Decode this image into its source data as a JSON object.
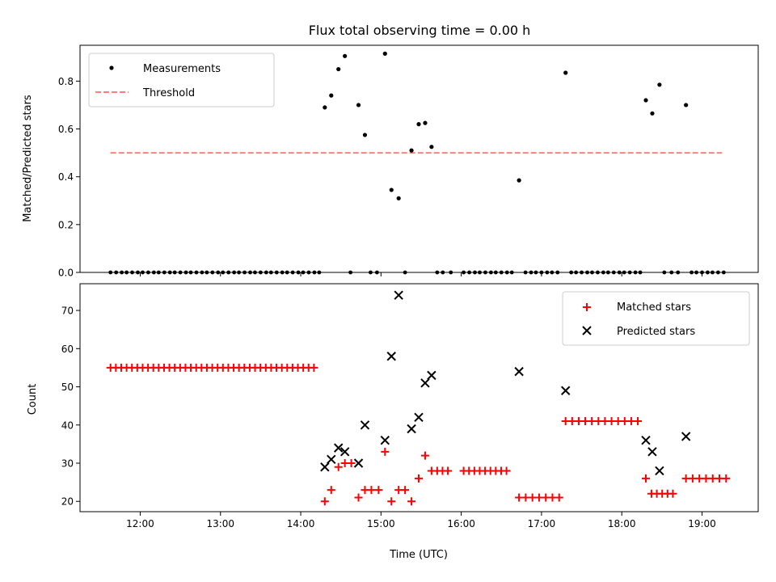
{
  "chart_data": [
    {
      "type": "scatter",
      "title": "Flux total observing time = 0.00 h",
      "xlabel": "",
      "ylabel": "Matched/Predicted stars",
      "xlim": [
        11.25,
        19.7
      ],
      "ylim": [
        0,
        0.95
      ],
      "xticks": [
        12,
        13,
        14,
        15,
        16,
        17,
        18,
        19
      ],
      "yticks": [
        {
          "v": 0,
          "label": "0.0"
        },
        {
          "v": 0.2,
          "label": "0.2"
        },
        {
          "v": 0.4,
          "label": "0.4"
        },
        {
          "v": 0.6,
          "label": "0.6"
        },
        {
          "v": 0.8,
          "label": "0.8"
        }
      ],
      "legend_position": "top-left",
      "series": [
        {
          "name": "Measurements",
          "kind": "dots",
          "color": "#000000",
          "zero_run_times": [
            11.63,
            11.7,
            11.77,
            11.83,
            11.9,
            11.97,
            12.03,
            12.1,
            12.17,
            12.23,
            12.3,
            12.37,
            12.43,
            12.5,
            12.57,
            12.63,
            12.7,
            12.77,
            12.83,
            12.9,
            12.97,
            13.03,
            13.1,
            13.17,
            13.23,
            13.3,
            13.37,
            13.43,
            13.5,
            13.57,
            13.63,
            13.7,
            13.77,
            13.83,
            13.9,
            13.97,
            14.03,
            14.1,
            14.17,
            14.23,
            14.62,
            14.87,
            14.95,
            15.3,
            15.7,
            15.77,
            15.87,
            16.03,
            16.1,
            16.17,
            16.23,
            16.3,
            16.37,
            16.43,
            16.5,
            16.57,
            16.63,
            16.8,
            16.87,
            16.93,
            17.0,
            17.07,
            17.13,
            17.2,
            17.37,
            17.43,
            17.5,
            17.57,
            17.63,
            17.7,
            17.77,
            17.83,
            17.9,
            17.97,
            18.03,
            18.1,
            18.17,
            18.23,
            18.53,
            18.62,
            18.7,
            18.87,
            18.93,
            19.0,
            19.07,
            19.13,
            19.2,
            19.27
          ],
          "points": [
            {
              "x": 14.3,
              "y": 0.69
            },
            {
              "x": 14.38,
              "y": 0.74
            },
            {
              "x": 14.47,
              "y": 0.85
            },
            {
              "x": 14.55,
              "y": 0.905
            },
            {
              "x": 14.72,
              "y": 0.7
            },
            {
              "x": 14.8,
              "y": 0.575
            },
            {
              "x": 15.05,
              "y": 0.915
            },
            {
              "x": 15.13,
              "y": 0.345
            },
            {
              "x": 15.22,
              "y": 0.31
            },
            {
              "x": 15.38,
              "y": 0.51
            },
            {
              "x": 15.47,
              "y": 0.62
            },
            {
              "x": 15.55,
              "y": 0.625
            },
            {
              "x": 15.63,
              "y": 0.525
            },
            {
              "x": 16.72,
              "y": 0.385
            },
            {
              "x": 17.3,
              "y": 0.835
            },
            {
              "x": 18.3,
              "y": 0.72
            },
            {
              "x": 18.38,
              "y": 0.665
            },
            {
              "x": 18.47,
              "y": 0.785
            },
            {
              "x": 18.8,
              "y": 0.7
            }
          ]
        },
        {
          "name": "Threshold",
          "kind": "dashed-line",
          "color": "#ff7f7f",
          "points": [
            {
              "x": 11.63,
              "y": 0.5
            },
            {
              "x": 19.25,
              "y": 0.5
            }
          ]
        }
      ]
    },
    {
      "type": "scatter",
      "title": "",
      "xlabel": "Time (UTC)",
      "ylabel": "Count",
      "xlim": [
        11.25,
        19.7
      ],
      "ylim": [
        17.3,
        77
      ],
      "xticks": [
        {
          "v": 12,
          "label": "12:00"
        },
        {
          "v": 13,
          "label": "13:00"
        },
        {
          "v": 14,
          "label": "14:00"
        },
        {
          "v": 15,
          "label": "15:00"
        },
        {
          "v": 16,
          "label": "16:00"
        },
        {
          "v": 17,
          "label": "17:00"
        },
        {
          "v": 18,
          "label": "18:00"
        },
        {
          "v": 19,
          "label": "19:00"
        }
      ],
      "yticks": [
        {
          "v": 20,
          "label": "20"
        },
        {
          "v": 30,
          "label": "30"
        },
        {
          "v": 40,
          "label": "40"
        },
        {
          "v": 50,
          "label": "50"
        },
        {
          "v": 60,
          "label": "60"
        },
        {
          "v": 70,
          "label": "70"
        }
      ],
      "legend_position": "top-right",
      "series": [
        {
          "name": "Matched stars",
          "kind": "plus",
          "color": "#ff0000",
          "runs": [
            {
              "x_start": 11.63,
              "x_end": 14.23,
              "step": 0.0667,
              "y": 55
            },
            {
              "x_start": 15.7,
              "x_end": 15.87,
              "step": 0.0667,
              "y": 28
            },
            {
              "x_start": 16.03,
              "x_end": 16.63,
              "step": 0.0667,
              "y": 28
            },
            {
              "x_start": 16.72,
              "x_end": 17.22,
              "step": 0.0833,
              "y": 21
            },
            {
              "x_start": 17.3,
              "x_end": 18.2,
              "step": 0.0818,
              "y": 41
            },
            {
              "x_start": 18.37,
              "x_end": 18.7,
              "step": 0.0667,
              "y": 22
            },
            {
              "x_start": 18.8,
              "x_end": 19.3,
              "step": 0.0833,
              "y": 26
            }
          ],
          "points": [
            {
              "x": 14.3,
              "y": 20
            },
            {
              "x": 14.38,
              "y": 23
            },
            {
              "x": 14.47,
              "y": 29
            },
            {
              "x": 14.55,
              "y": 30
            },
            {
              "x": 14.63,
              "y": 30
            },
            {
              "x": 14.72,
              "y": 21
            },
            {
              "x": 14.8,
              "y": 23
            },
            {
              "x": 14.88,
              "y": 23
            },
            {
              "x": 14.97,
              "y": 23
            },
            {
              "x": 15.05,
              "y": 33
            },
            {
              "x": 15.13,
              "y": 20
            },
            {
              "x": 15.22,
              "y": 23
            },
            {
              "x": 15.3,
              "y": 23
            },
            {
              "x": 15.38,
              "y": 20
            },
            {
              "x": 15.47,
              "y": 26
            },
            {
              "x": 15.55,
              "y": 32
            },
            {
              "x": 15.63,
              "y": 28
            },
            {
              "x": 18.3,
              "y": 26
            }
          ]
        },
        {
          "name": "Predicted stars",
          "kind": "cross",
          "color": "#000000",
          "points": [
            {
              "x": 14.3,
              "y": 29
            },
            {
              "x": 14.38,
              "y": 31
            },
            {
              "x": 14.47,
              "y": 34
            },
            {
              "x": 14.55,
              "y": 33
            },
            {
              "x": 14.72,
              "y": 30
            },
            {
              "x": 14.8,
              "y": 40
            },
            {
              "x": 15.05,
              "y": 36
            },
            {
              "x": 15.13,
              "y": 58
            },
            {
              "x": 15.22,
              "y": 74
            },
            {
              "x": 15.38,
              "y": 39
            },
            {
              "x": 15.47,
              "y": 42
            },
            {
              "x": 15.55,
              "y": 51
            },
            {
              "x": 15.63,
              "y": 53
            },
            {
              "x": 16.72,
              "y": 54
            },
            {
              "x": 17.3,
              "y": 49
            },
            {
              "x": 18.3,
              "y": 36
            },
            {
              "x": 18.38,
              "y": 33
            },
            {
              "x": 18.47,
              "y": 28
            },
            {
              "x": 18.8,
              "y": 37
            }
          ]
        }
      ]
    }
  ]
}
